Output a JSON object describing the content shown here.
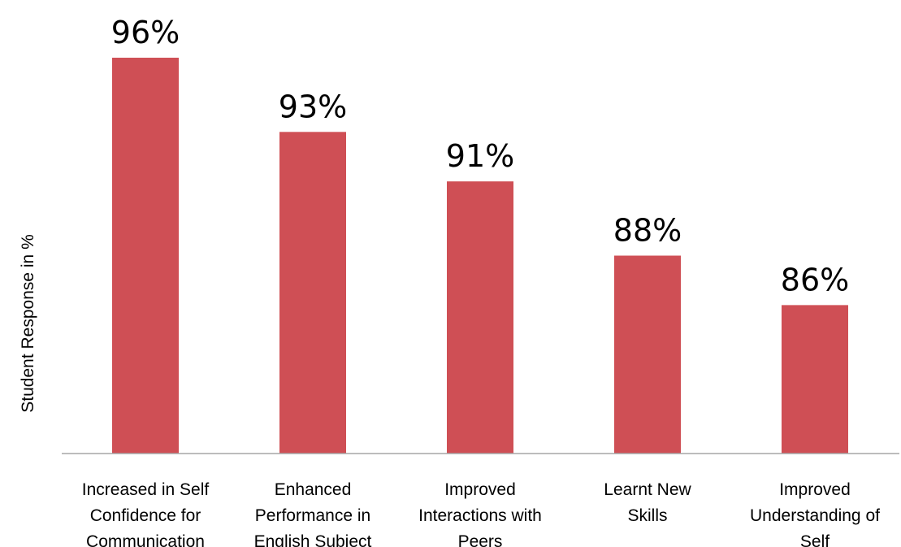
{
  "chart_data": {
    "type": "bar",
    "categories": [
      [
        "Increased in Self",
        "Confidence for",
        "Communication"
      ],
      [
        "Enhanced",
        "Performance in",
        "English Subject"
      ],
      [
        "Improved",
        "Interactions with",
        "Peers"
      ],
      [
        "Learnt New",
        "Skills"
      ],
      [
        "Improved",
        "Understanding of",
        "Self"
      ]
    ],
    "values": [
      96,
      93,
      91,
      88,
      86
    ],
    "data_labels": [
      "96%",
      "93%",
      "91%",
      "88%",
      "86%"
    ],
    "ylabel": "Student Response in %",
    "ylim": [
      80,
      100
    ],
    "grid": false,
    "legend": "none",
    "bar_color": "#cf4f55",
    "axis_color": "#a6a6a6"
  }
}
